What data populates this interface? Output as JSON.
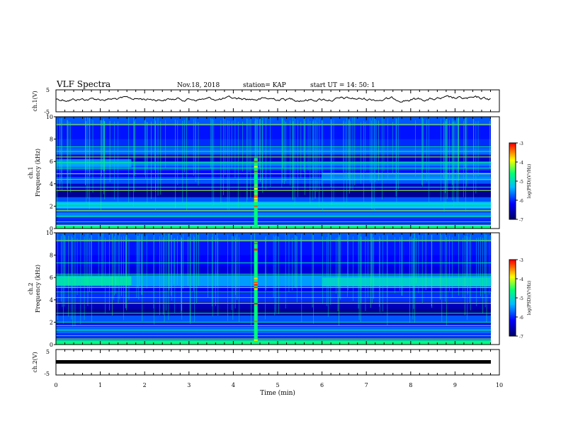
{
  "header": {
    "title": "VLF Spectra",
    "date": "Nov.18, 2018",
    "station": "station= KAP",
    "start_ut": "start  UT =   14: 50: 1"
  },
  "chart_data": {
    "type": "heatmap",
    "x_label": "Time  (min)",
    "x_range": [
      0,
      10
    ],
    "x_ticks": [
      "0",
      "1",
      "2",
      "3",
      "4",
      "5",
      "6",
      "7",
      "8",
      "9",
      "10"
    ],
    "ch1_wave": {
      "ylabel": "ch.1(V)",
      "y_range": [
        -5,
        5
      ],
      "y_ticks": [
        "5",
        "-5"
      ]
    },
    "ch1_spec": {
      "ylabel_ch": "ch.1",
      "ylabel": "Frequency  (kHz)",
      "y_range": [
        0,
        10
      ],
      "y_ticks": [
        "0",
        "2",
        "4",
        "6",
        "8",
        "10"
      ]
    },
    "ch2_spec": {
      "ylabel_ch": "ch.2",
      "ylabel": "Frequency  (kHz)",
      "y_range": [
        0,
        10
      ],
      "y_ticks": [
        "0",
        "2",
        "4",
        "6",
        "8",
        "10"
      ]
    },
    "ch2_wave": {
      "ylabel": "ch.2(V)",
      "y_range": [
        -5,
        5
      ],
      "y_ticks": [
        "5",
        "-5"
      ]
    },
    "colorbar": {
      "label": "log(PSD)(V²/Hz)",
      "range": [
        -7,
        -3
      ],
      "ticks": [
        "-3",
        "-4",
        "-5",
        "-6",
        "-7"
      ]
    },
    "burst_time_min": 4.5,
    "notes_colors": [
      "#00008b",
      "#0000ff",
      "#00c0ff",
      "#00ff80",
      "#ffff00",
      "#ff0000"
    ]
  }
}
